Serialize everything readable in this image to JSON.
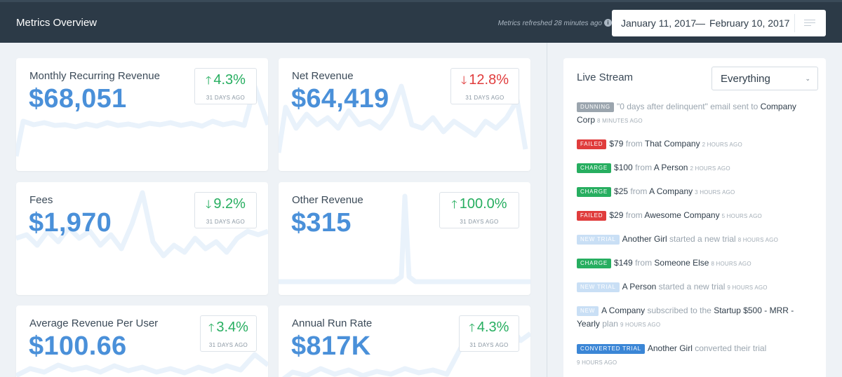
{
  "header": {
    "title": "Metrics Overview",
    "refreshed_label": "Metrics refreshed",
    "refreshed_time": "28 minutes ago",
    "info_icon": "i",
    "date_from": "January 11, 2017",
    "date_separator": "—",
    "date_to": "February 10, 2017"
  },
  "metrics": [
    {
      "label": "Monthly Recurring Revenue",
      "value": "$68,051",
      "arrow": "🡑",
      "change": "4.3%",
      "direction": "up",
      "ago": "31 DAYS AGO"
    },
    {
      "label": "Net Revenue",
      "value": "$64,419",
      "arrow": "🡓",
      "change": "12.8%",
      "direction": "down-red",
      "ago": "31 DAYS AGO"
    },
    {
      "label": "Fees",
      "value": "$1,970",
      "arrow": "🡓",
      "change": "9.2%",
      "direction": "down-green",
      "ago": "31 DAYS AGO"
    },
    {
      "label": "Other Revenue",
      "value": "$315",
      "arrow": "🡑",
      "change": "100.0%",
      "direction": "up",
      "ago": "31 DAYS AGO"
    },
    {
      "label": "Average Revenue Per User",
      "value": "$100.66",
      "arrow": "🡑",
      "change": "3.4%",
      "direction": "up",
      "ago": "31 DAYS AGO"
    },
    {
      "label": "Annual Run Rate",
      "value": "$817K",
      "arrow": "🡑",
      "change": "4.3%",
      "direction": "up",
      "ago": "31 DAYS AGO"
    }
  ],
  "colors": {
    "accent_blue": "#4a90d9",
    "positive": "#27ae60",
    "negative": "#e03c3c",
    "header_bg": "#2c3a47"
  },
  "stream": {
    "title": "Live Stream",
    "filter_value": "Everything",
    "events": [
      {
        "badge": "DUNNING",
        "parts": [
          "\"0 days after delinquent\" email sent to ",
          "Company Corp"
        ],
        "time": "8 MINUTES AGO"
      },
      {
        "badge": "FAILED",
        "parts": [
          "$79",
          " from ",
          "That Company"
        ],
        "time": "2 HOURS AGO"
      },
      {
        "badge": "CHARGE",
        "parts": [
          "$100",
          " from ",
          "A Person"
        ],
        "time": "2 HOURS AGO"
      },
      {
        "badge": "CHARGE",
        "parts": [
          "$25",
          " from ",
          "A Company"
        ],
        "time": "3 HOURS AGO"
      },
      {
        "badge": "FAILED",
        "parts": [
          "$29",
          " from ",
          "Awesome Company"
        ],
        "time": "5 HOURS AGO"
      },
      {
        "badge": "NEW TRIAL",
        "parts": [
          "Another Girl",
          " started a new trial"
        ],
        "time": "8 HOURS AGO"
      },
      {
        "badge": "CHARGE",
        "parts": [
          "$149",
          " from ",
          "Someone Else"
        ],
        "time": "8 HOURS AGO"
      },
      {
        "badge": "NEW TRIAL",
        "parts": [
          "A Person",
          " started a new trial"
        ],
        "time": "9 HOURS AGO"
      },
      {
        "badge": "NEW",
        "parts": [
          "A Company",
          " subscribed to the ",
          "Startup $500 - MRR - Yearly",
          " plan"
        ],
        "time": "9 HOURS AGO"
      },
      {
        "badge": "CONVERTED TRIAL",
        "parts": [
          "Another Girl",
          " converted their trial"
        ],
        "time": "9 HOURS AGO"
      }
    ]
  }
}
